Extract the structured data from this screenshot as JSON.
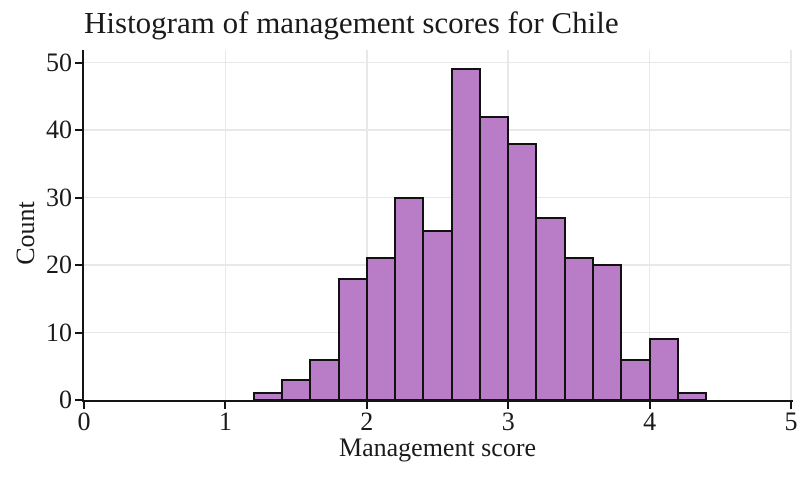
{
  "chart_data": {
    "type": "bar",
    "subtype": "histogram",
    "title": "Histogram of management scores for Chile",
    "xlabel": "Management score",
    "ylabel": "Count",
    "xlim": [
      0,
      5
    ],
    "ylim": [
      0,
      50
    ],
    "x_ticks": [
      "0",
      "1",
      "2",
      "3",
      "4",
      "5"
    ],
    "y_ticks": [
      "0",
      "10",
      "20",
      "30",
      "40",
      "50"
    ],
    "grid": true,
    "legend": "none",
    "bin_start": 1.2,
    "bin_width": 0.2,
    "bin_edges": [
      1.2,
      1.4,
      1.6,
      1.8,
      2.0,
      2.2,
      2.4,
      2.6,
      2.8,
      3.0,
      3.2,
      3.4,
      3.6,
      3.8,
      4.0,
      4.2,
      4.4
    ],
    "counts": [
      1,
      3,
      6,
      18,
      21,
      30,
      25,
      49,
      42,
      38,
      27,
      21,
      20,
      6,
      9,
      1
    ],
    "colors": {
      "bar_fill": "#b97dc7",
      "bar_edge": "#111111",
      "grid": "#e8e8e8",
      "axis": "#141414",
      "text": "#1a1a1a"
    }
  }
}
